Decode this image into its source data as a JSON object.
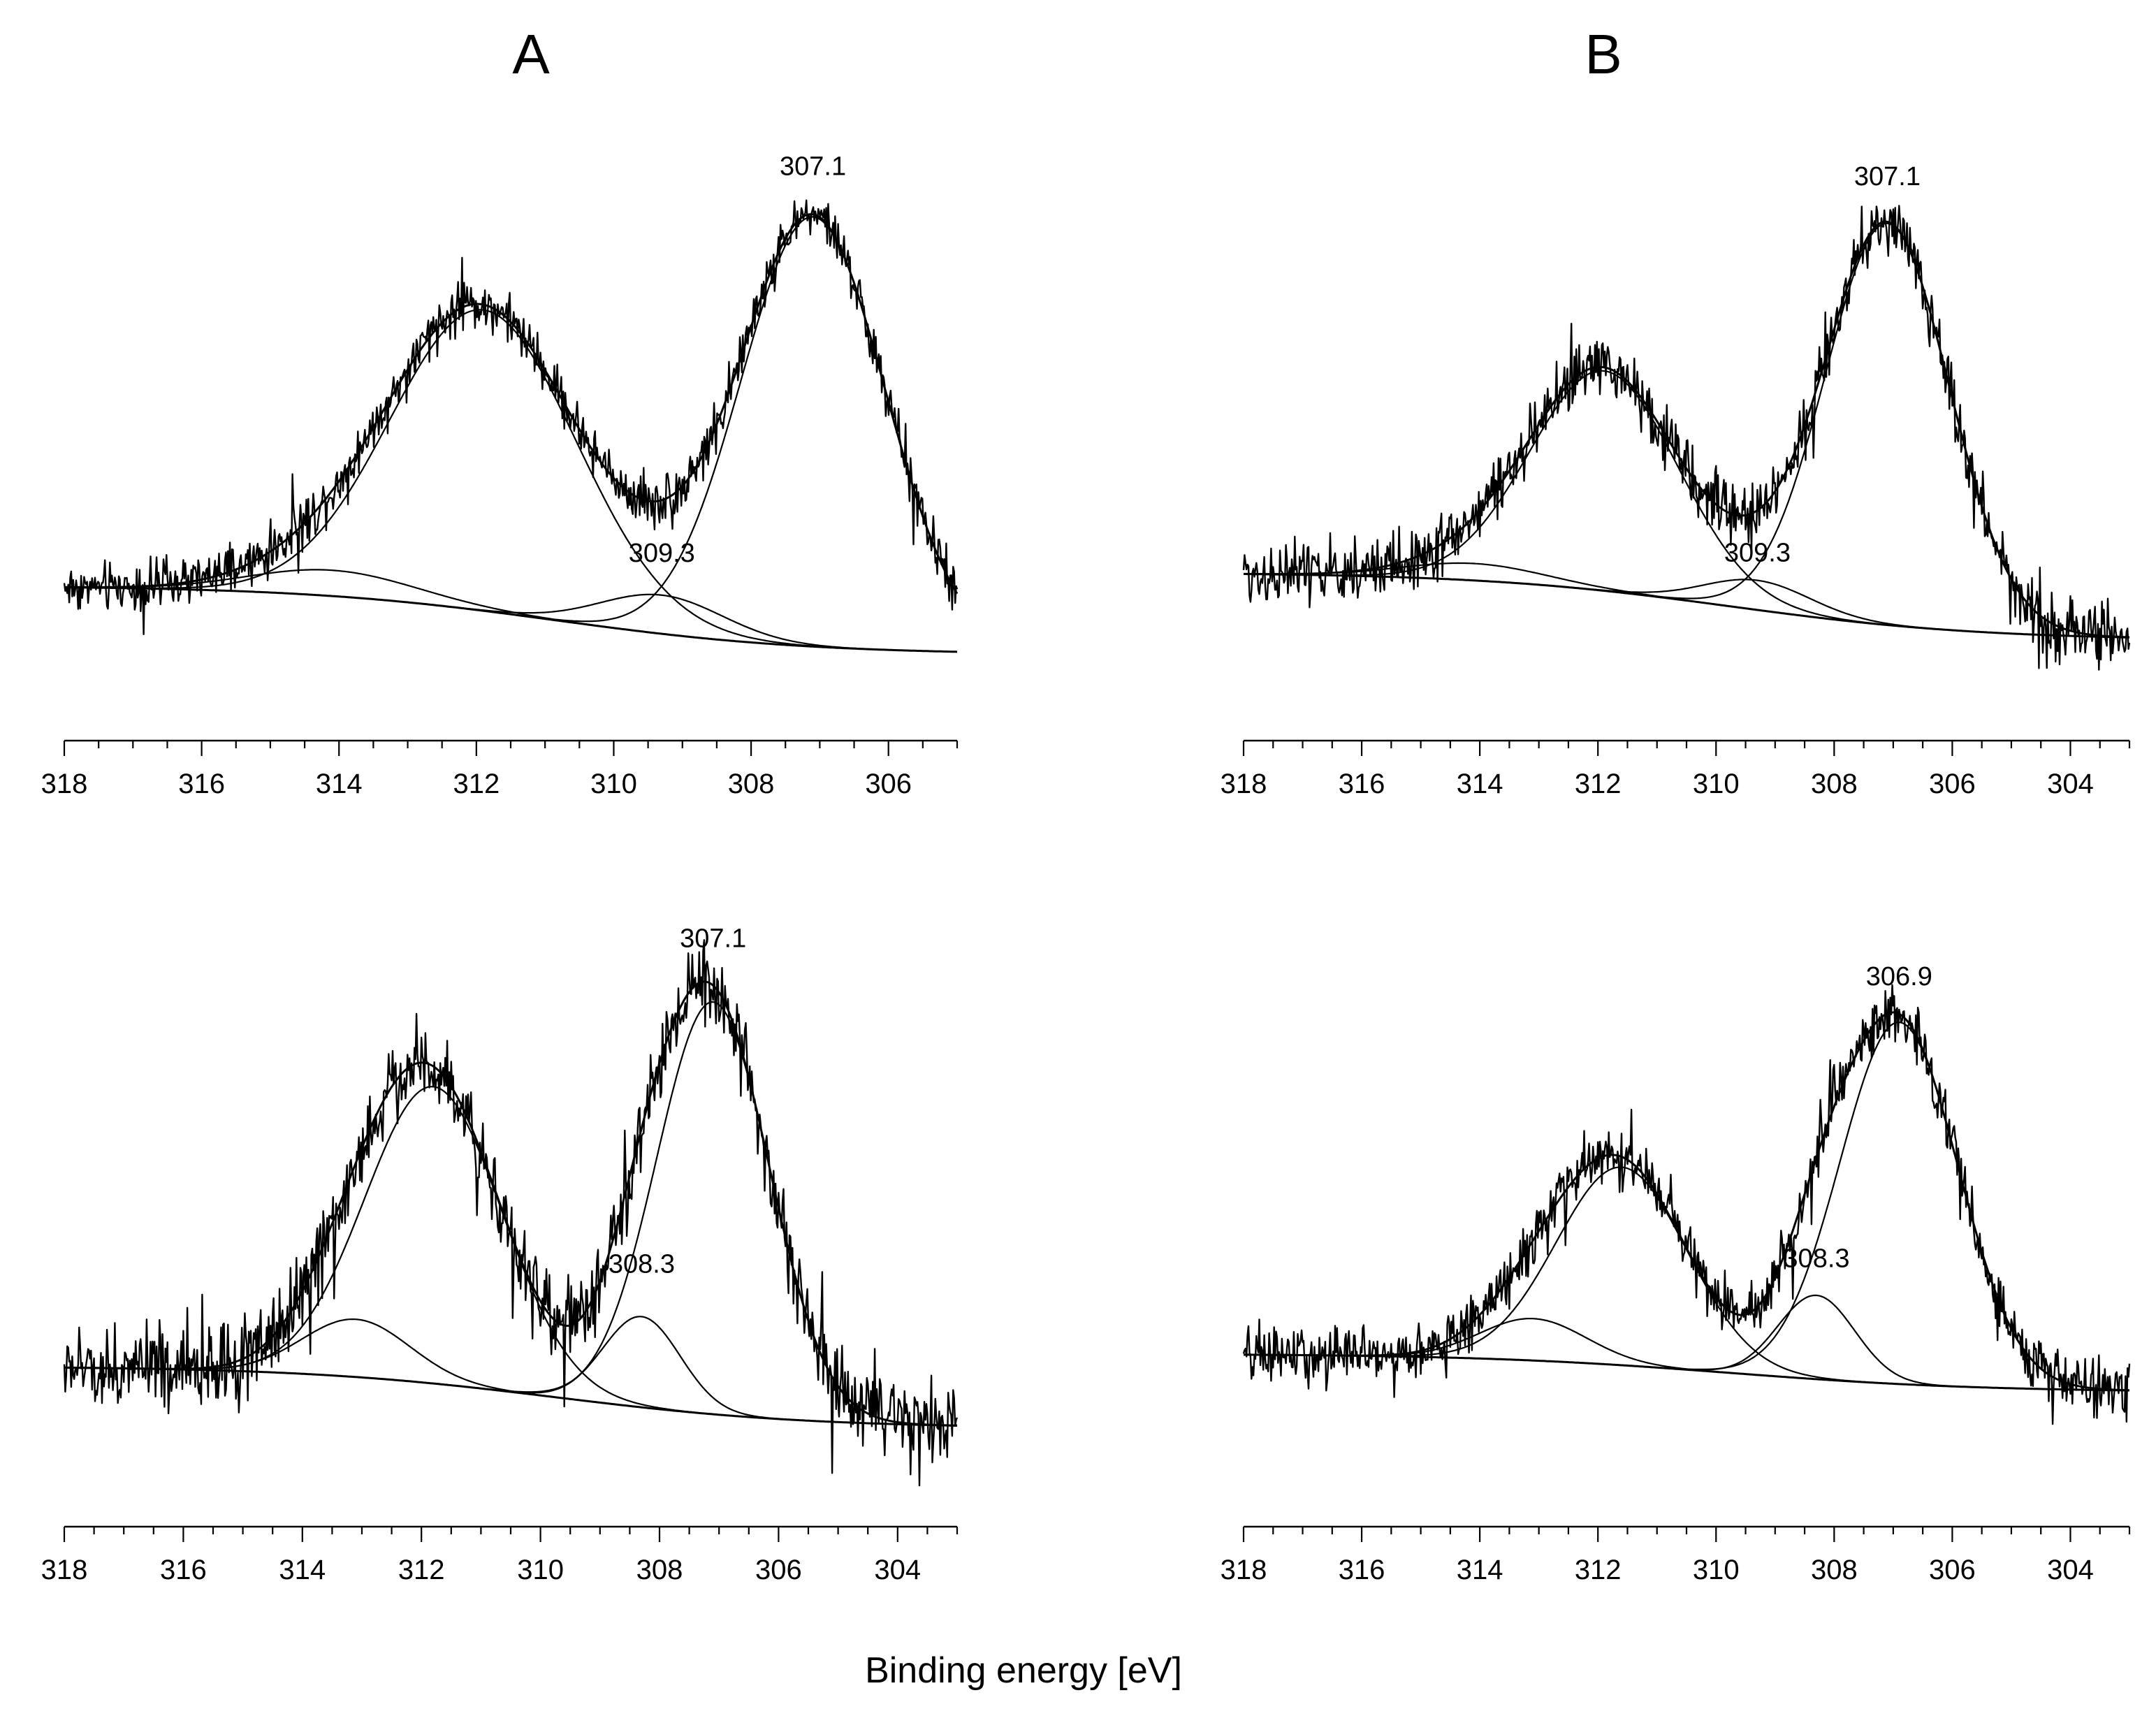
{
  "figure": {
    "column_titles": [
      "A",
      "B"
    ],
    "xlabel": "Binding energy [eV]"
  },
  "chart_data": [
    {
      "type": "line",
      "panel": "A-top",
      "xlim": [
        318,
        305
      ],
      "xticks": [
        318,
        316,
        314,
        312,
        310,
        308,
        306
      ],
      "xlabel": "Binding energy [eV]",
      "ylabel": "",
      "baseline": {
        "left": 0.1,
        "right": -0.06
      },
      "components": [
        {
          "name": "main-peak",
          "center": 307.1,
          "height": 1.0,
          "width": 1.05
        },
        {
          "name": "second-peak",
          "center": 311.9,
          "height": 0.7,
          "width": 1.35
        },
        {
          "name": "satellite-1",
          "center": 309.3,
          "height": 0.09,
          "width": 0.9
        },
        {
          "name": "satellite-2",
          "center": 314.1,
          "height": 0.06,
          "width": 1.2
        }
      ],
      "annotations": [
        {
          "text": "307.1",
          "x": 307.1,
          "y": 1.04
        },
        {
          "text": "309.3",
          "x": 309.3,
          "y": 0.14
        }
      ],
      "noise": 0.035
    },
    {
      "type": "line",
      "panel": "B-top",
      "xlim": [
        318,
        303
      ],
      "xticks": [
        318,
        316,
        314,
        312,
        310,
        308,
        306,
        304
      ],
      "xlabel": "Binding energy [eV]",
      "ylabel": "",
      "baseline": {
        "left": 0.1,
        "right": -0.06
      },
      "components": [
        {
          "name": "main-peak",
          "center": 307.1,
          "height": 0.95,
          "width": 1.05
        },
        {
          "name": "second-peak",
          "center": 311.9,
          "height": 0.52,
          "width": 1.25
        },
        {
          "name": "satellite-1",
          "center": 309.3,
          "height": 0.07,
          "width": 0.9
        },
        {
          "name": "satellite-2",
          "center": 314.1,
          "height": 0.04,
          "width": 1.2
        }
      ],
      "annotations": [
        {
          "text": "307.1",
          "x": 307.1,
          "y": 1.0
        },
        {
          "text": "309.3",
          "x": 309.3,
          "y": 0.11
        }
      ],
      "noise": 0.045
    },
    {
      "type": "line",
      "panel": "A-bottom",
      "xlim": [
        318,
        303
      ],
      "xticks": [
        318,
        316,
        314,
        312,
        310,
        308,
        306,
        304
      ],
      "xlabel": "Binding energy [eV]",
      "ylabel": "",
      "baseline": {
        "left": 0.05,
        "right": -0.1
      },
      "components": [
        {
          "name": "main-peak",
          "center": 307.1,
          "height": 1.0,
          "width": 0.95
        },
        {
          "name": "second-peak",
          "center": 311.8,
          "height": 0.72,
          "width": 1.15
        },
        {
          "name": "satellite-1",
          "center": 308.3,
          "height": 0.22,
          "width": 0.65
        },
        {
          "name": "satellite-2",
          "center": 313.1,
          "height": 0.14,
          "width": 0.9
        }
      ],
      "annotations": [
        {
          "text": "307.1",
          "x": 307.1,
          "y": 1.05
        },
        {
          "text": "308.3",
          "x": 308.3,
          "y": 0.26
        }
      ],
      "noise": 0.06
    },
    {
      "type": "line",
      "panel": "B-bottom",
      "xlim": [
        318,
        303
      ],
      "xticks": [
        318,
        316,
        314,
        312,
        310,
        308,
        306,
        304
      ],
      "xlabel": "Binding energy [eV]",
      "ylabel": "",
      "baseline": {
        "left": 0.05,
        "right": -0.05
      },
      "components": [
        {
          "name": "main-peak",
          "center": 306.9,
          "height": 0.95,
          "width": 1.0
        },
        {
          "name": "second-peak",
          "center": 311.6,
          "height": 0.52,
          "width": 1.1
        },
        {
          "name": "satellite-1",
          "center": 308.3,
          "height": 0.22,
          "width": 0.65
        },
        {
          "name": "satellite-2",
          "center": 313.1,
          "height": 0.11,
          "width": 0.9
        }
      ],
      "annotations": [
        {
          "text": "306.9",
          "x": 306.9,
          "y": 1.0
        },
        {
          "text": "308.3",
          "x": 308.3,
          "y": 0.26
        }
      ],
      "noise": 0.045
    }
  ]
}
